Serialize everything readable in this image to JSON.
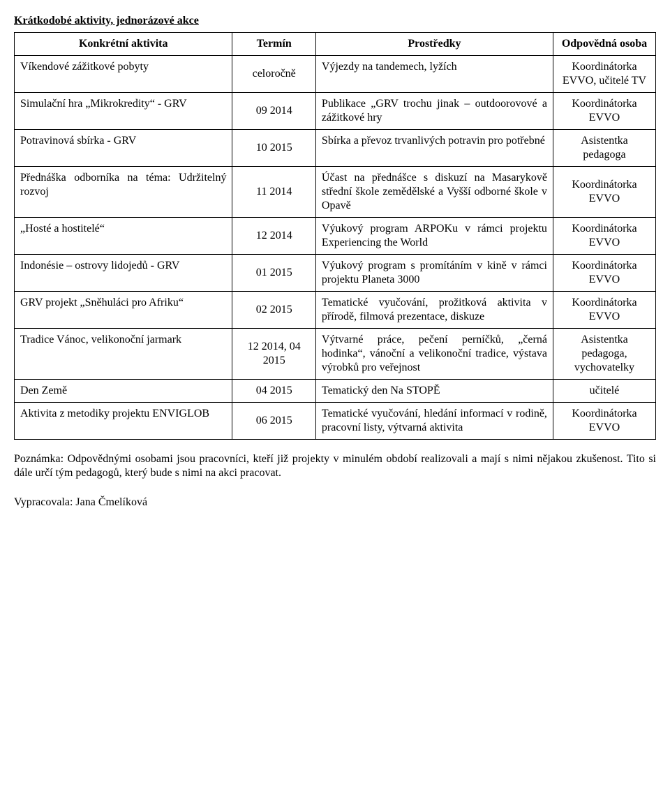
{
  "section_title": "Krátkodobé aktivity, jednorázové akce",
  "headers": {
    "activity": "Konkrétní aktivita",
    "term": "Termín",
    "means": "Prostředky",
    "responsible": "Odpovědná osoba"
  },
  "rows": [
    {
      "activity": "Víkendové zážitkové pobyty",
      "term": "celoročně",
      "means": "Výjezdy na tandemech, lyžích",
      "responsible": "Koordinátorka EVVO, učitelé TV"
    },
    {
      "activity": "Simulační hra „Mikrokredity“ - GRV",
      "term": "09 2014",
      "means": "Publikace „GRV trochu jinak – outdoorovové a zážitkové hry",
      "responsible": "Koordinátorka EVVO"
    },
    {
      "activity": "Potravinová sbírka - GRV",
      "term": "10 2015",
      "means": "Sbírka a převoz trvanlivých potravin pro potřebné",
      "responsible": "Asistentka pedagoga"
    },
    {
      "activity": "Přednáška odborníka na téma: Udržitelný rozvoj",
      "term": "11 2014",
      "means": "Účast na přednášce s diskuzí na Masarykově střední škole zemědělské a Vyšší odborné škole v Opavě",
      "responsible": "Koordinátorka EVVO"
    },
    {
      "activity": "„Hosté a hostitelé“",
      "term": "12 2014",
      "means": "Výukový program ARPOKu v rámci projektu Experiencing the World",
      "responsible": "Koordinátorka EVVO"
    },
    {
      "activity": "Indonésie – ostrovy lidojedů - GRV",
      "term": "01 2015",
      "means": "Výukový program s promítáním v kině v rámci projektu Planeta 3000",
      "responsible": "Koordinátorka EVVO"
    },
    {
      "activity": "GRV projekt „Sněhuláci pro Afriku“",
      "term": "02 2015",
      "means": "Tematické vyučování, prožitková aktivita v přírodě, filmová prezentace, diskuze",
      "responsible": "Koordinátorka EVVO"
    },
    {
      "activity": "Tradice Vánoc, velikonoční jarmark",
      "term": "12 2014, 04 2015",
      "means": "Výtvarné práce, pečení perníčků, „černá hodinka“, vánoční a velikonoční tradice, výstava výrobků pro veřejnost",
      "responsible": "Asistentka pedagoga, vychovatelky"
    },
    {
      "activity": "Den Země",
      "term": "04 2015",
      "means": "Tematický den Na STOPĚ",
      "responsible": "učitelé"
    },
    {
      "activity": "Aktivita z metodiky projektu ENVIGLOB",
      "term": "06 2015",
      "means": "Tematické vyučování, hledání informací v rodině, pracovní listy, výtvarná aktivita",
      "responsible": "Koordinátorka EVVO"
    }
  ],
  "note": "Poznámka: Odpovědnými osobami jsou pracovníci, kteří již projekty v minulém období realizovali a mají s nimi nějakou zkušenost. Tito si dále určí tým pedagogů, který bude s nimi na akci pracovat.",
  "author": "Vypracovala: Jana Čmelíková"
}
